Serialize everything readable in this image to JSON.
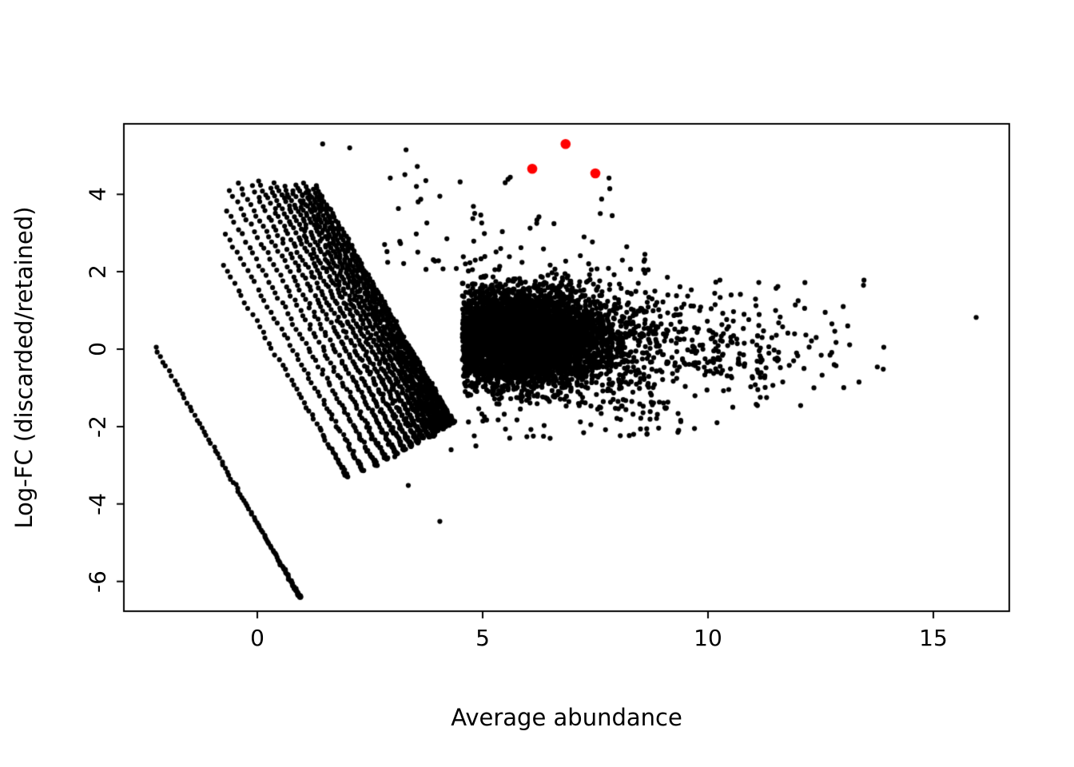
{
  "chart_data": {
    "type": "scatter",
    "title": "",
    "xlabel": "Average abundance",
    "ylabel": "Log-FC (discarded/retained)",
    "xlim": [
      -2.96,
      16.68
    ],
    "ylim": [
      -6.76,
      5.82
    ],
    "xticks": [
      0,
      5,
      10,
      15
    ],
    "yticks": [
      -6,
      -4,
      -2,
      0,
      2,
      4
    ],
    "grid": false,
    "legend": "none",
    "point_color": "#000000",
    "highlight_color": "#ff0000",
    "highlighted_points": [
      {
        "x": 6.1,
        "y": 4.66
      },
      {
        "x": 6.84,
        "y": 5.3
      },
      {
        "x": 7.5,
        "y": 4.54
      }
    ],
    "generators": {
      "seed": 7,
      "items": [
        {
          "kind": "streak",
          "a": -2.25,
          "m0": 0.05,
          "m1": -6.4,
          "n": 112,
          "jitter": 0.012,
          "curve": 2.2
        },
        {
          "kind": "fan",
          "intercepts": [
            0.35,
            0.78,
            1.14,
            1.45,
            1.72,
            1.96,
            2.17,
            2.36,
            2.53,
            2.69,
            2.83,
            2.96,
            3.08,
            3.19,
            3.3,
            3.4
          ],
          "m_top": [
            2.2,
            3.0,
            3.6,
            4.1,
            4.3,
            4.2,
            4.35,
            4.15,
            4.3,
            4.2,
            4.1,
            4.25,
            4.0,
            4.3,
            4.1,
            4.2
          ],
          "m_bot": [
            -3.3,
            -3.15,
            -3.0,
            -2.85,
            -2.7,
            -2.6,
            -2.5,
            -2.4,
            -2.3,
            -2.25,
            -2.2,
            -2.1,
            -2.05,
            -2.0,
            -1.95,
            -1.9
          ],
          "n_base": 55,
          "n_step": 7,
          "jitter": 0.018,
          "curve": 1.7
        },
        {
          "kind": "gauss",
          "n": 5200,
          "mx": 5.9,
          "sx": 1.05,
          "xmin": 4.55,
          "xmax": 9.8,
          "my": 0.3,
          "sy": 0.62,
          "ymin": -1.35,
          "ymax": 2.02
        },
        {
          "kind": "gauss",
          "n": 320,
          "mx": 9.5,
          "sx": 1.6,
          "xmin": 8.0,
          "xmax": 14.2,
          "my": 0.05,
          "sy": 0.8,
          "ymin": -2.1,
          "ymax": 1.9
        },
        {
          "kind": "uniform",
          "n": 70,
          "x0": 4.6,
          "x1": 9.6,
          "y0": -1.35,
          "y1": -2.35,
          "ypow": 1.8
        },
        {
          "kind": "uniform",
          "n": 55,
          "x0": 2.6,
          "x1": 8.8,
          "y0": 2.05,
          "y1": 3.5,
          "ypow": 2.2
        },
        {
          "kind": "uniform",
          "n": 16,
          "x0": 3.0,
          "x1": 8.0,
          "y0": 3.4,
          "y1": 4.6,
          "ypow": 1.5
        },
        {
          "kind": "points",
          "pts": [
            [
              1.45,
              5.3
            ],
            [
              2.05,
              5.2
            ],
            [
              3.3,
              5.15
            ],
            [
              3.55,
              4.72
            ],
            [
              2.95,
              4.42
            ],
            [
              4.5,
              4.32
            ],
            [
              5.5,
              4.3
            ],
            [
              4.05,
              3.95
            ],
            [
              6.2,
              3.25
            ],
            [
              7.25,
              2.9
            ],
            [
              5.4,
              2.6
            ],
            [
              8.1,
              2.3
            ],
            [
              8.6,
              2.45
            ],
            [
              15.95,
              0.82
            ],
            [
              13.9,
              0.05
            ],
            [
              13.45,
              1.65
            ],
            [
              12.15,
              1.72
            ],
            [
              11.55,
              1.62
            ],
            [
              12.0,
              1.25
            ],
            [
              12.6,
              0.95
            ],
            [
              13.1,
              0.6
            ],
            [
              13.35,
              -0.85
            ],
            [
              12.35,
              -1.0
            ],
            [
              11.3,
              -1.25
            ],
            [
              10.55,
              -1.5
            ],
            [
              11.9,
              -0.3
            ],
            [
              12.8,
              -0.4
            ],
            [
              11.2,
              0.3
            ],
            [
              10.8,
              0.9
            ],
            [
              11.5,
              1.0
            ],
            [
              12.4,
              0.3
            ],
            [
              13.0,
              1.1
            ],
            [
              10.2,
              -1.9
            ],
            [
              9.7,
              -2.05
            ],
            [
              4.05,
              -4.45
            ],
            [
              3.35,
              -3.52
            ],
            [
              2.62,
              -2.95
            ],
            [
              3.05,
              -2.78
            ],
            [
              4.3,
              -2.6
            ],
            [
              4.85,
              -2.5
            ],
            [
              5.6,
              -2.3
            ],
            [
              6.35,
              -2.25
            ],
            [
              8.35,
              -2.2
            ],
            [
              7.4,
              -1.95
            ]
          ]
        }
      ]
    }
  }
}
